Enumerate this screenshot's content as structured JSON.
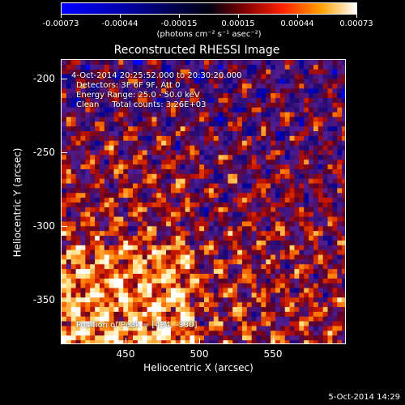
{
  "colorbar": {
    "labels": [
      "-0.00073",
      "-0.00044",
      "-0.00015",
      "0.00015",
      "0.00044",
      "0.00073"
    ],
    "unit": "(photons cm⁻² s⁻¹ asec⁻²)"
  },
  "image": {
    "title": "Reconstructed RHESSI Image",
    "time_range": "4-Oct-2014 20:25:52.000 to 20:30:20.000",
    "detectors": "Detectors: 3F 6F 9F, Att 0",
    "energy_range": "Energy Range: 25.0 - 50.0 keV",
    "method_counts": "Clean     Total counts: 3.26E+03",
    "peak": "Position of Peak = [434, -330]"
  },
  "axes": {
    "xlabel": "Heliocentric X (arcsec)",
    "ylabel": "Heliocentric Y (arcsec)",
    "xticks": [
      "450",
      "500",
      "550"
    ],
    "yticks": [
      "-200",
      "-250",
      "-300",
      "-350"
    ]
  },
  "footer": {
    "date": "5-Oct-2014 14:29"
  }
}
